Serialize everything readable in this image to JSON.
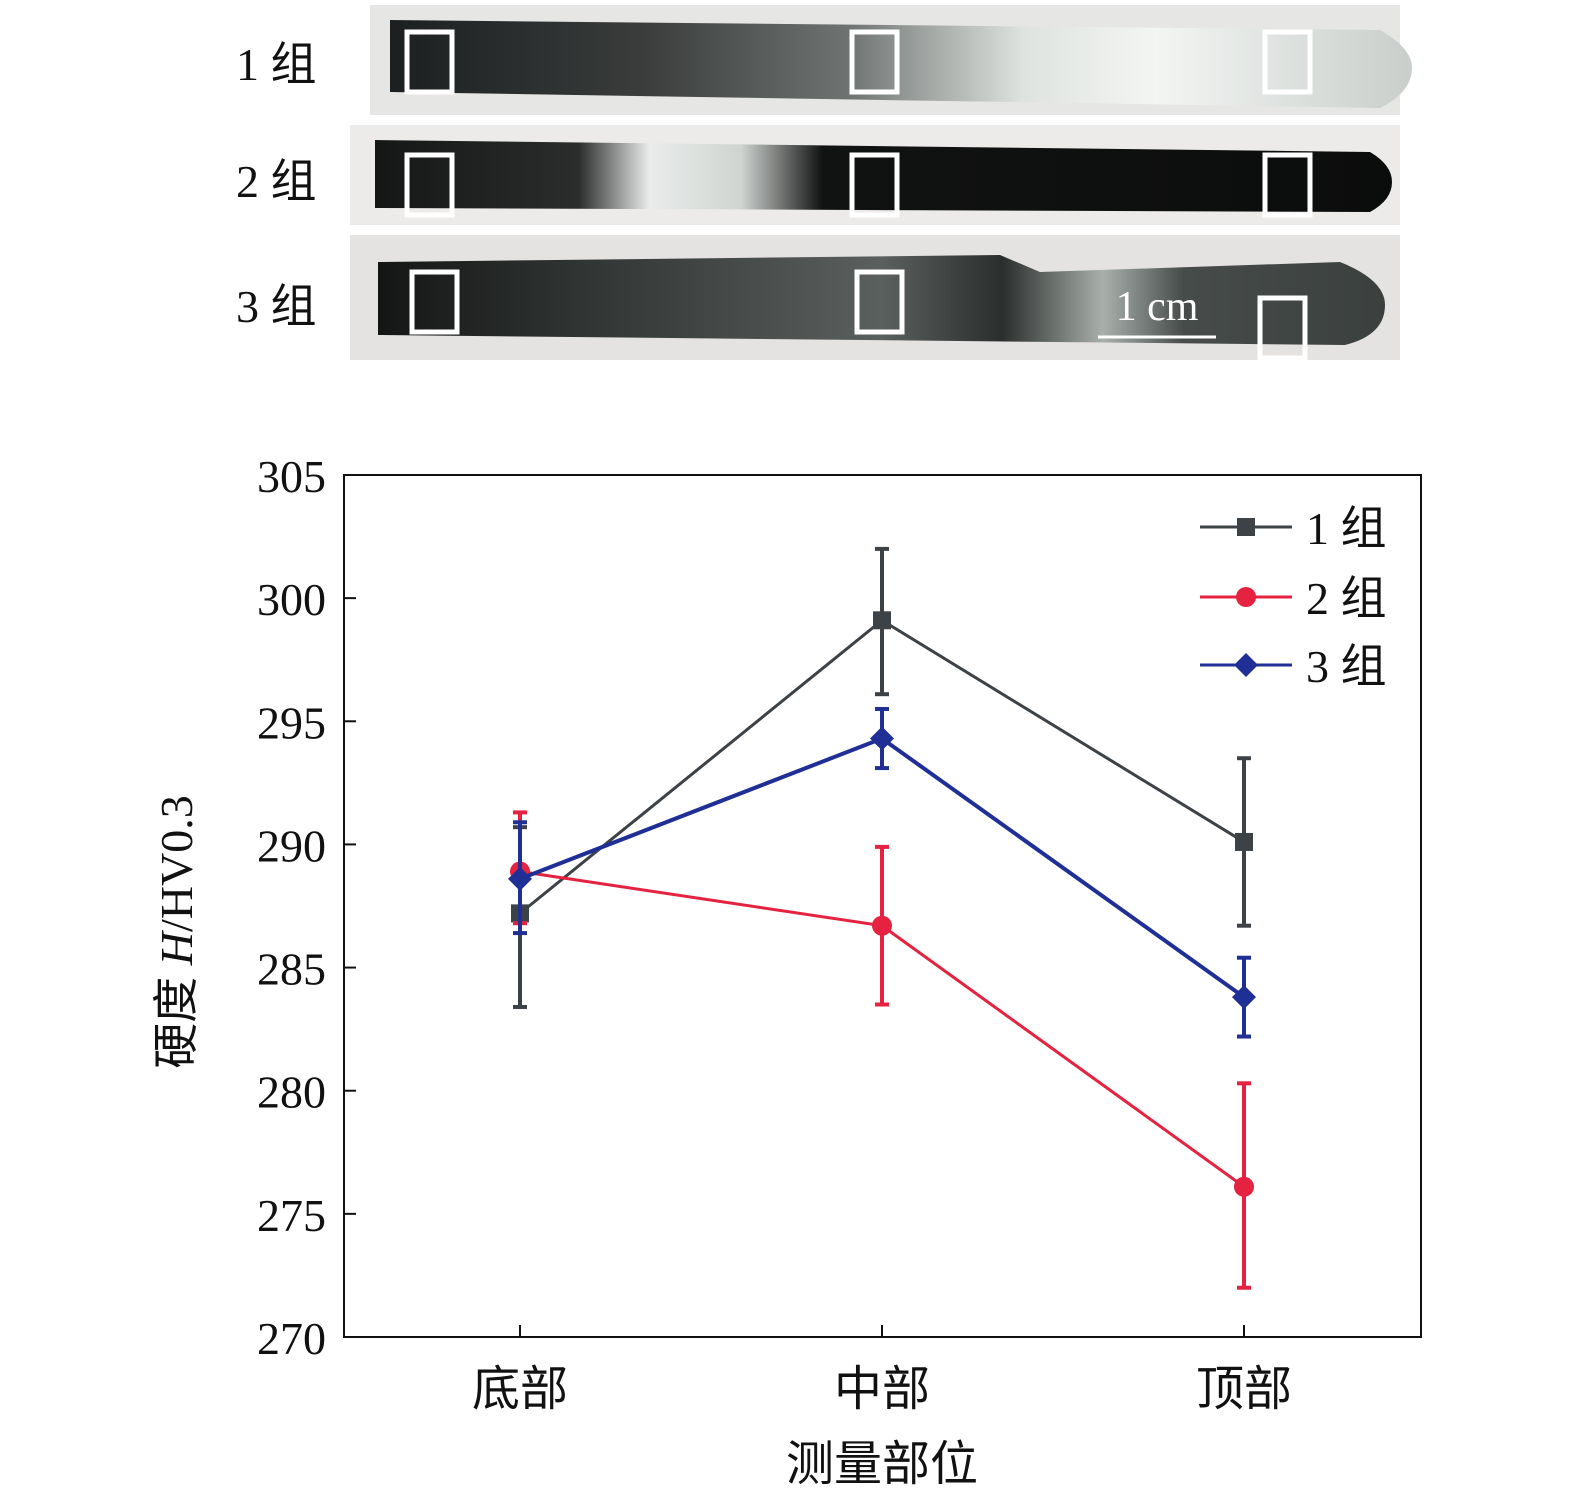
{
  "photo": {
    "rows": [
      "1 组",
      "2 组",
      "3 组"
    ],
    "scale_bar": "1 cm"
  },
  "colors": {
    "group1": "#3d4247",
    "group2": "#e5223f",
    "group3": "#1f2f96"
  },
  "chart_data": {
    "type": "line",
    "xlabel": "测量部位",
    "ylabel_prefix": "硬度 ",
    "ylabel_symbol": "H",
    "ylabel_unit": "/HV0.3",
    "categories": [
      "底部",
      "中部",
      "顶部"
    ],
    "ylim": [
      270,
      305
    ],
    "yticks": [
      270,
      275,
      280,
      285,
      290,
      295,
      300,
      305
    ],
    "legend_position": "top-right",
    "series": [
      {
        "name": "1 组",
        "marker": "square",
        "values": [
          287.2,
          299.1,
          290.1
        ],
        "err_low": [
          283.4,
          296.1,
          286.7
        ],
        "err_high": [
          290.7,
          302.0,
          293.5
        ]
      },
      {
        "name": "2 组",
        "marker": "circle",
        "values": [
          288.9,
          286.7,
          276.1
        ],
        "err_low": [
          286.8,
          283.5,
          272.0
        ],
        "err_high": [
          291.3,
          289.9,
          280.3
        ]
      },
      {
        "name": "3 组",
        "marker": "diamond",
        "values": [
          288.6,
          294.3,
          283.8
        ],
        "err_low": [
          286.4,
          293.1,
          282.2
        ],
        "err_high": [
          290.9,
          295.5,
          285.4
        ]
      }
    ]
  }
}
